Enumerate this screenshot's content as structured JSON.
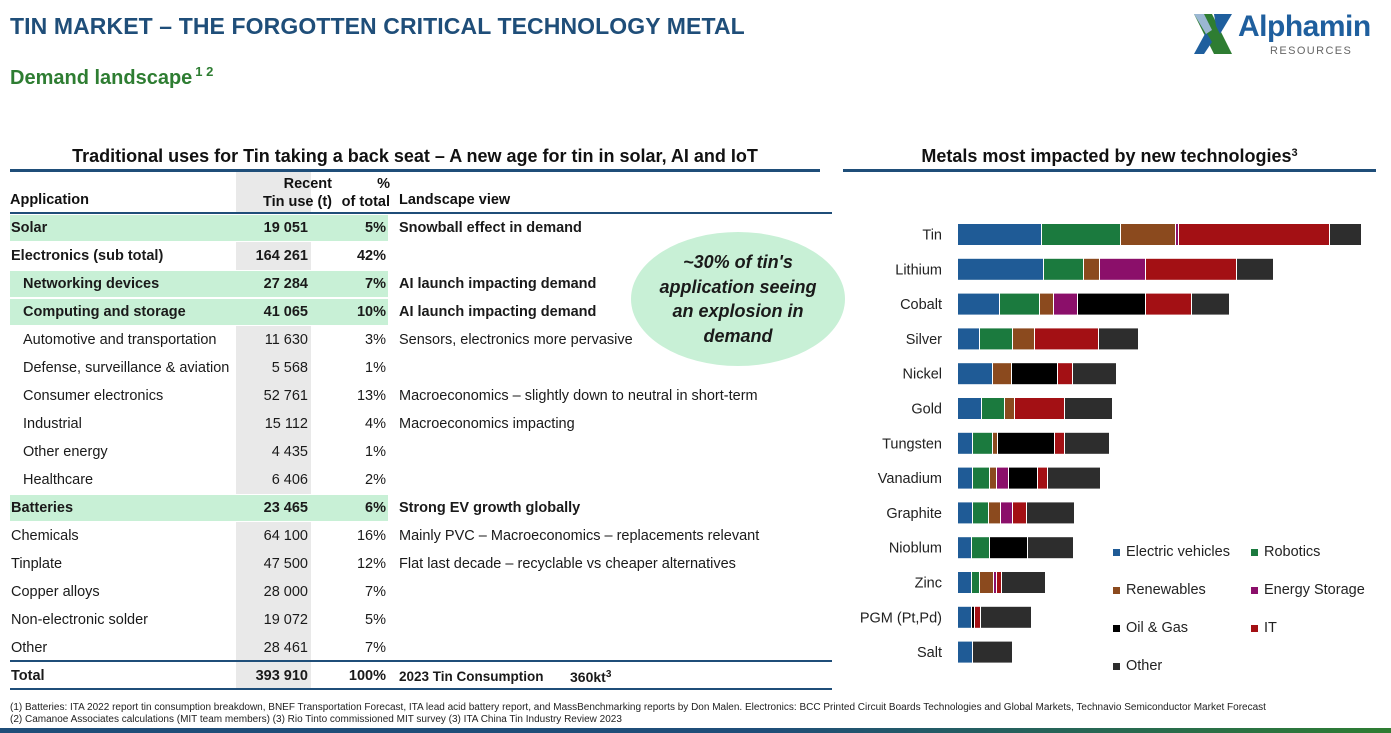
{
  "header": {
    "title": "TIN MARKET – THE FORGOTTEN CRITICAL TECHNOLOGY METAL",
    "subtitle": "Demand landscape",
    "subtitle_sup": "1 2",
    "logo_word": "Alphamin",
    "logo_sub": "RESOURCES"
  },
  "left_section": {
    "heading": "Traditional uses for Tin taking a back seat – A new age for tin in solar, AI and IoT",
    "columns": {
      "application": "Application",
      "recent_line1": "Recent",
      "recent_line2": "Tin use (t)",
      "pct_line1": "%",
      "pct_line2": "of total",
      "landscape": "Landscape view"
    },
    "rows": [
      {
        "app": "Solar",
        "tin": "19 051",
        "pct": "5%",
        "view": "Snowball effect in demand",
        "highlight": true,
        "bold": true,
        "indent": false
      },
      {
        "app": "Electronics (sub total)",
        "tin": "164 261",
        "pct": "42%",
        "view": "",
        "highlight": false,
        "bold": true,
        "indent": false
      },
      {
        "app": "Networking devices",
        "tin": "27 284",
        "pct": "7%",
        "view": "AI launch impacting demand",
        "highlight": true,
        "bold": true,
        "indent": true
      },
      {
        "app": "Computing and storage",
        "tin": "41 065",
        "pct": "10%",
        "view": "AI launch impacting demand",
        "highlight": true,
        "bold": true,
        "indent": true
      },
      {
        "app": "Automotive and transportation",
        "tin": "11 630",
        "pct": "3%",
        "view": "Sensors, electronics more pervasive",
        "highlight": false,
        "bold": false,
        "indent": true
      },
      {
        "app": "Defense, surveillance & aviation",
        "tin": "5 568",
        "pct": "1%",
        "view": "",
        "highlight": false,
        "bold": false,
        "indent": true
      },
      {
        "app": "Consumer electronics",
        "tin": "52 761",
        "pct": "13%",
        "view": "Macroeconomics – slightly down to neutral in short-term",
        "highlight": false,
        "bold": false,
        "indent": true
      },
      {
        "app": "Industrial",
        "tin": "15 112",
        "pct": "4%",
        "view": "Macroeconomics impacting",
        "highlight": false,
        "bold": false,
        "indent": true
      },
      {
        "app": "Other energy",
        "tin": "4 435",
        "pct": "1%",
        "view": "",
        "highlight": false,
        "bold": false,
        "indent": true
      },
      {
        "app": "Healthcare",
        "tin": "6 406",
        "pct": "2%",
        "view": "",
        "highlight": false,
        "bold": false,
        "indent": true
      },
      {
        "app": "Batteries",
        "tin": "23 465",
        "pct": "6%",
        "view": "Strong EV growth globally",
        "highlight": true,
        "bold": true,
        "indent": false
      },
      {
        "app": "Chemicals",
        "tin": "64 100",
        "pct": "16%",
        "view": "Mainly PVC – Macroeconomics – replacements relevant",
        "highlight": false,
        "bold": false,
        "indent": false
      },
      {
        "app": "Tinplate",
        "tin": "47 500",
        "pct": "12%",
        "view": "Flat last decade – recyclable vs cheaper alternatives",
        "highlight": false,
        "bold": false,
        "indent": false
      },
      {
        "app": "Copper alloys",
        "tin": "28 000",
        "pct": "7%",
        "view": "",
        "highlight": false,
        "bold": false,
        "indent": false
      },
      {
        "app": "Non-electronic solder",
        "tin": "19 072",
        "pct": "5%",
        "view": "",
        "highlight": false,
        "bold": false,
        "indent": false
      },
      {
        "app": "Other",
        "tin": "28 461",
        "pct": "7%",
        "view": "",
        "highlight": false,
        "bold": false,
        "indent": false
      }
    ],
    "total": {
      "app": "Total",
      "tin": "393 910",
      "pct": "100%",
      "view": "2023 Tin Consumption",
      "value": "360kt",
      "value_sup": "3"
    },
    "bubble": "~30% of tin's application seeing an explosion in demand"
  },
  "right_section": {
    "heading": "Metals most impacted by new technologies",
    "heading_sup": "3"
  },
  "chart_data": {
    "type": "bar",
    "orientation": "horizontal",
    "stacked": true,
    "categories": [
      "Tin",
      "Lithium",
      "Cobalt",
      "Silver",
      "Nickel",
      "Gold",
      "Tungsten",
      "Vanadium",
      "Graphite",
      "Nioblum",
      "Zinc",
      "PGM (Pt,Pd)",
      "Salt"
    ],
    "series": [
      {
        "name": "Electric vehicles",
        "color": "#1f5b96",
        "values": [
          84,
          86,
          42,
          22,
          35,
          24,
          15,
          15,
          15,
          14,
          14,
          14,
          15
        ]
      },
      {
        "name": "Robotics",
        "color": "#1b7a3e",
        "values": [
          79,
          40,
          40,
          33,
          0,
          23,
          20,
          17,
          16,
          18,
          8,
          0,
          0
        ]
      },
      {
        "name": "Renewables",
        "color": "#8b4a1e",
        "values": [
          55,
          16,
          14,
          22,
          19,
          10,
          5,
          7,
          12,
          0,
          14,
          0,
          0
        ]
      },
      {
        "name": "Energy Storage",
        "color": "#8b0f6a",
        "values": [
          3,
          46,
          24,
          0,
          0,
          0,
          0,
          12,
          12,
          0,
          3,
          0,
          0
        ]
      },
      {
        "name": "Oil & Gas",
        "color": "#000000",
        "values": [
          0,
          0,
          68,
          0,
          46,
          0,
          57,
          29,
          0,
          38,
          0,
          3,
          0
        ]
      },
      {
        "name": "IT",
        "color": "#a31014",
        "values": [
          151,
          91,
          46,
          64,
          15,
          50,
          10,
          10,
          14,
          0,
          5,
          6,
          0
        ]
      },
      {
        "name": "Other",
        "color": "#2d2d2d",
        "values": [
          32,
          37,
          38,
          40,
          44,
          48,
          45,
          53,
          48,
          46,
          44,
          51,
          40
        ]
      }
    ],
    "legend": "bottom-right",
    "grid": false
  },
  "footnotes": {
    "line1": "(1) Batteries: ITA 2022 report tin consumption breakdown, BNEF Transportation Forecast, ITA lead acid battery report, and MassBenchmarking reports by Don Malen. Electronics: BCC Printed Circuit Boards Technologies and Global Markets, Technavio Semiconductor Market Forecast",
    "line2": "(2) Camanoe Associates calculations (MIT team members) (3) Rio Tinto commissioned MIT survey (3) ITA China Tin Industry Review 2023"
  }
}
